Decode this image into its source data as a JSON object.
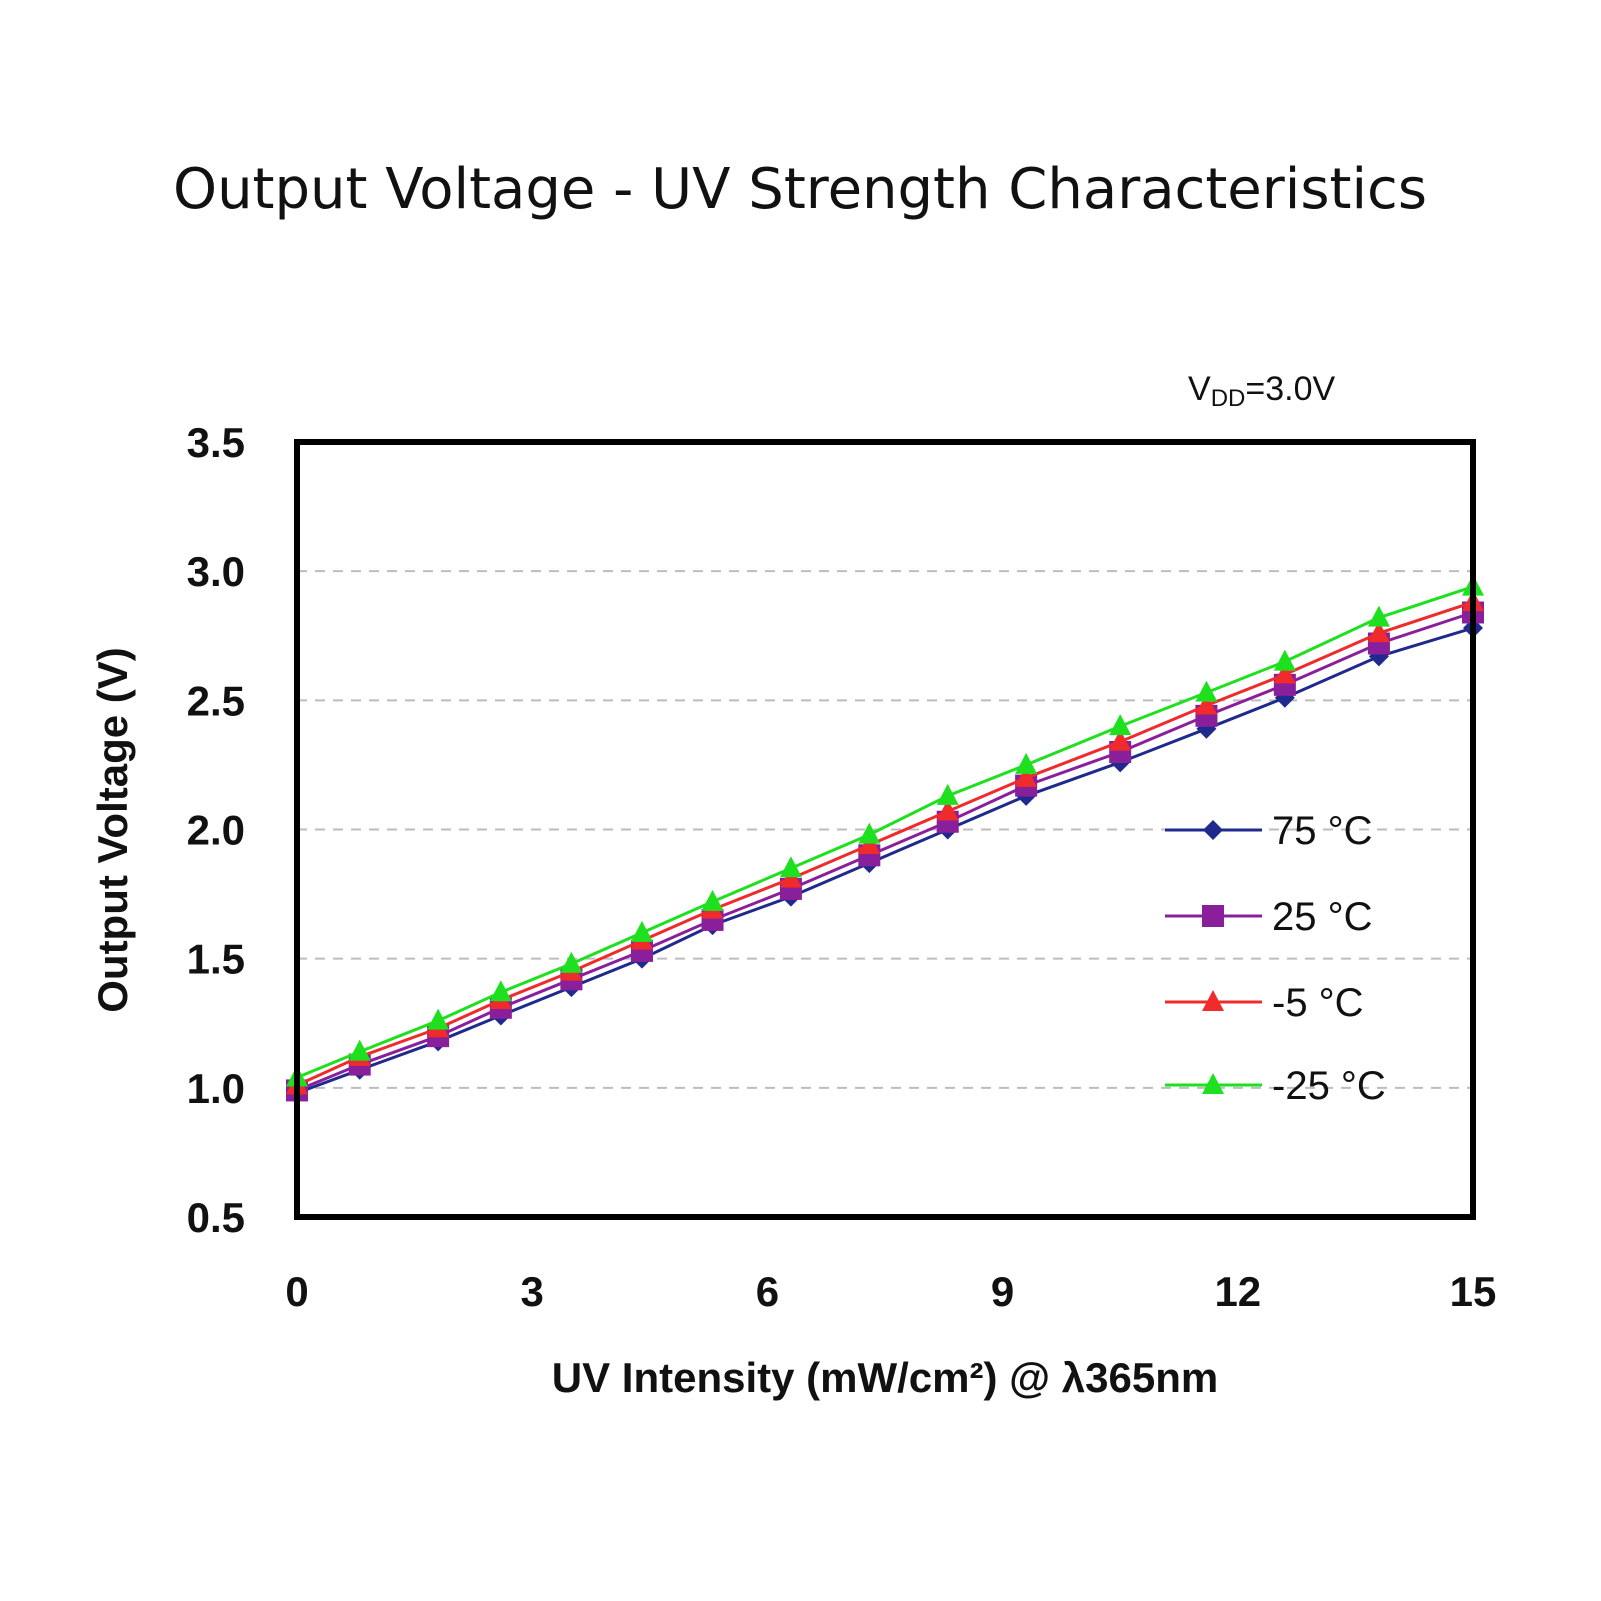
{
  "chart_data": {
    "type": "line",
    "title": "Output Voltage - UV Strength Characteristics",
    "xlabel": "UV Intensity (mW/cm²) @ λ365nm",
    "ylabel": "Output Voltage (V)",
    "annotation": {
      "main": "V",
      "sub": "DD",
      "rest": "=3.0V"
    },
    "xlim": [
      0,
      15
    ],
    "ylim": [
      0.5,
      3.5
    ],
    "xticks": [
      "0",
      "3",
      "6",
      "9",
      "12",
      "15"
    ],
    "yticks": [
      "3.5",
      "3.0",
      "2.5",
      "2.0",
      "1.5",
      "1.0",
      "0.5"
    ],
    "grid": true,
    "legend_position": "right",
    "x": [
      0,
      0.8,
      1.8,
      2.6,
      3.5,
      4.4,
      5.3,
      6.3,
      7.3,
      8.3,
      9.3,
      10.5,
      11.6,
      12.6,
      13.8,
      15
    ],
    "series": [
      {
        "name": "75 °C",
        "marker": "diamond",
        "color": "#1f2a8c",
        "values": [
          0.98,
          1.07,
          1.18,
          1.28,
          1.39,
          1.5,
          1.63,
          1.74,
          1.87,
          2.0,
          2.13,
          2.26,
          2.39,
          2.51,
          2.67,
          2.78
        ]
      },
      {
        "name": "25 °C",
        "marker": "square",
        "color": "#8a1f9c",
        "values": [
          0.99,
          1.09,
          1.2,
          1.31,
          1.42,
          1.53,
          1.65,
          1.77,
          1.9,
          2.03,
          2.17,
          2.3,
          2.44,
          2.56,
          2.72,
          2.84
        ]
      },
      {
        "name": "-5 °C",
        "marker": "triangle",
        "color": "#ef2b2b",
        "values": [
          1.01,
          1.12,
          1.23,
          1.34,
          1.45,
          1.57,
          1.69,
          1.81,
          1.94,
          2.07,
          2.2,
          2.34,
          2.48,
          2.6,
          2.76,
          2.88
        ]
      },
      {
        "name": "-25 °C",
        "marker": "triangle",
        "color": "#1fe01f",
        "values": [
          1.04,
          1.14,
          1.26,
          1.37,
          1.48,
          1.6,
          1.72,
          1.85,
          1.98,
          2.13,
          2.25,
          2.4,
          2.53,
          2.65,
          2.82,
          2.94
        ]
      }
    ]
  }
}
